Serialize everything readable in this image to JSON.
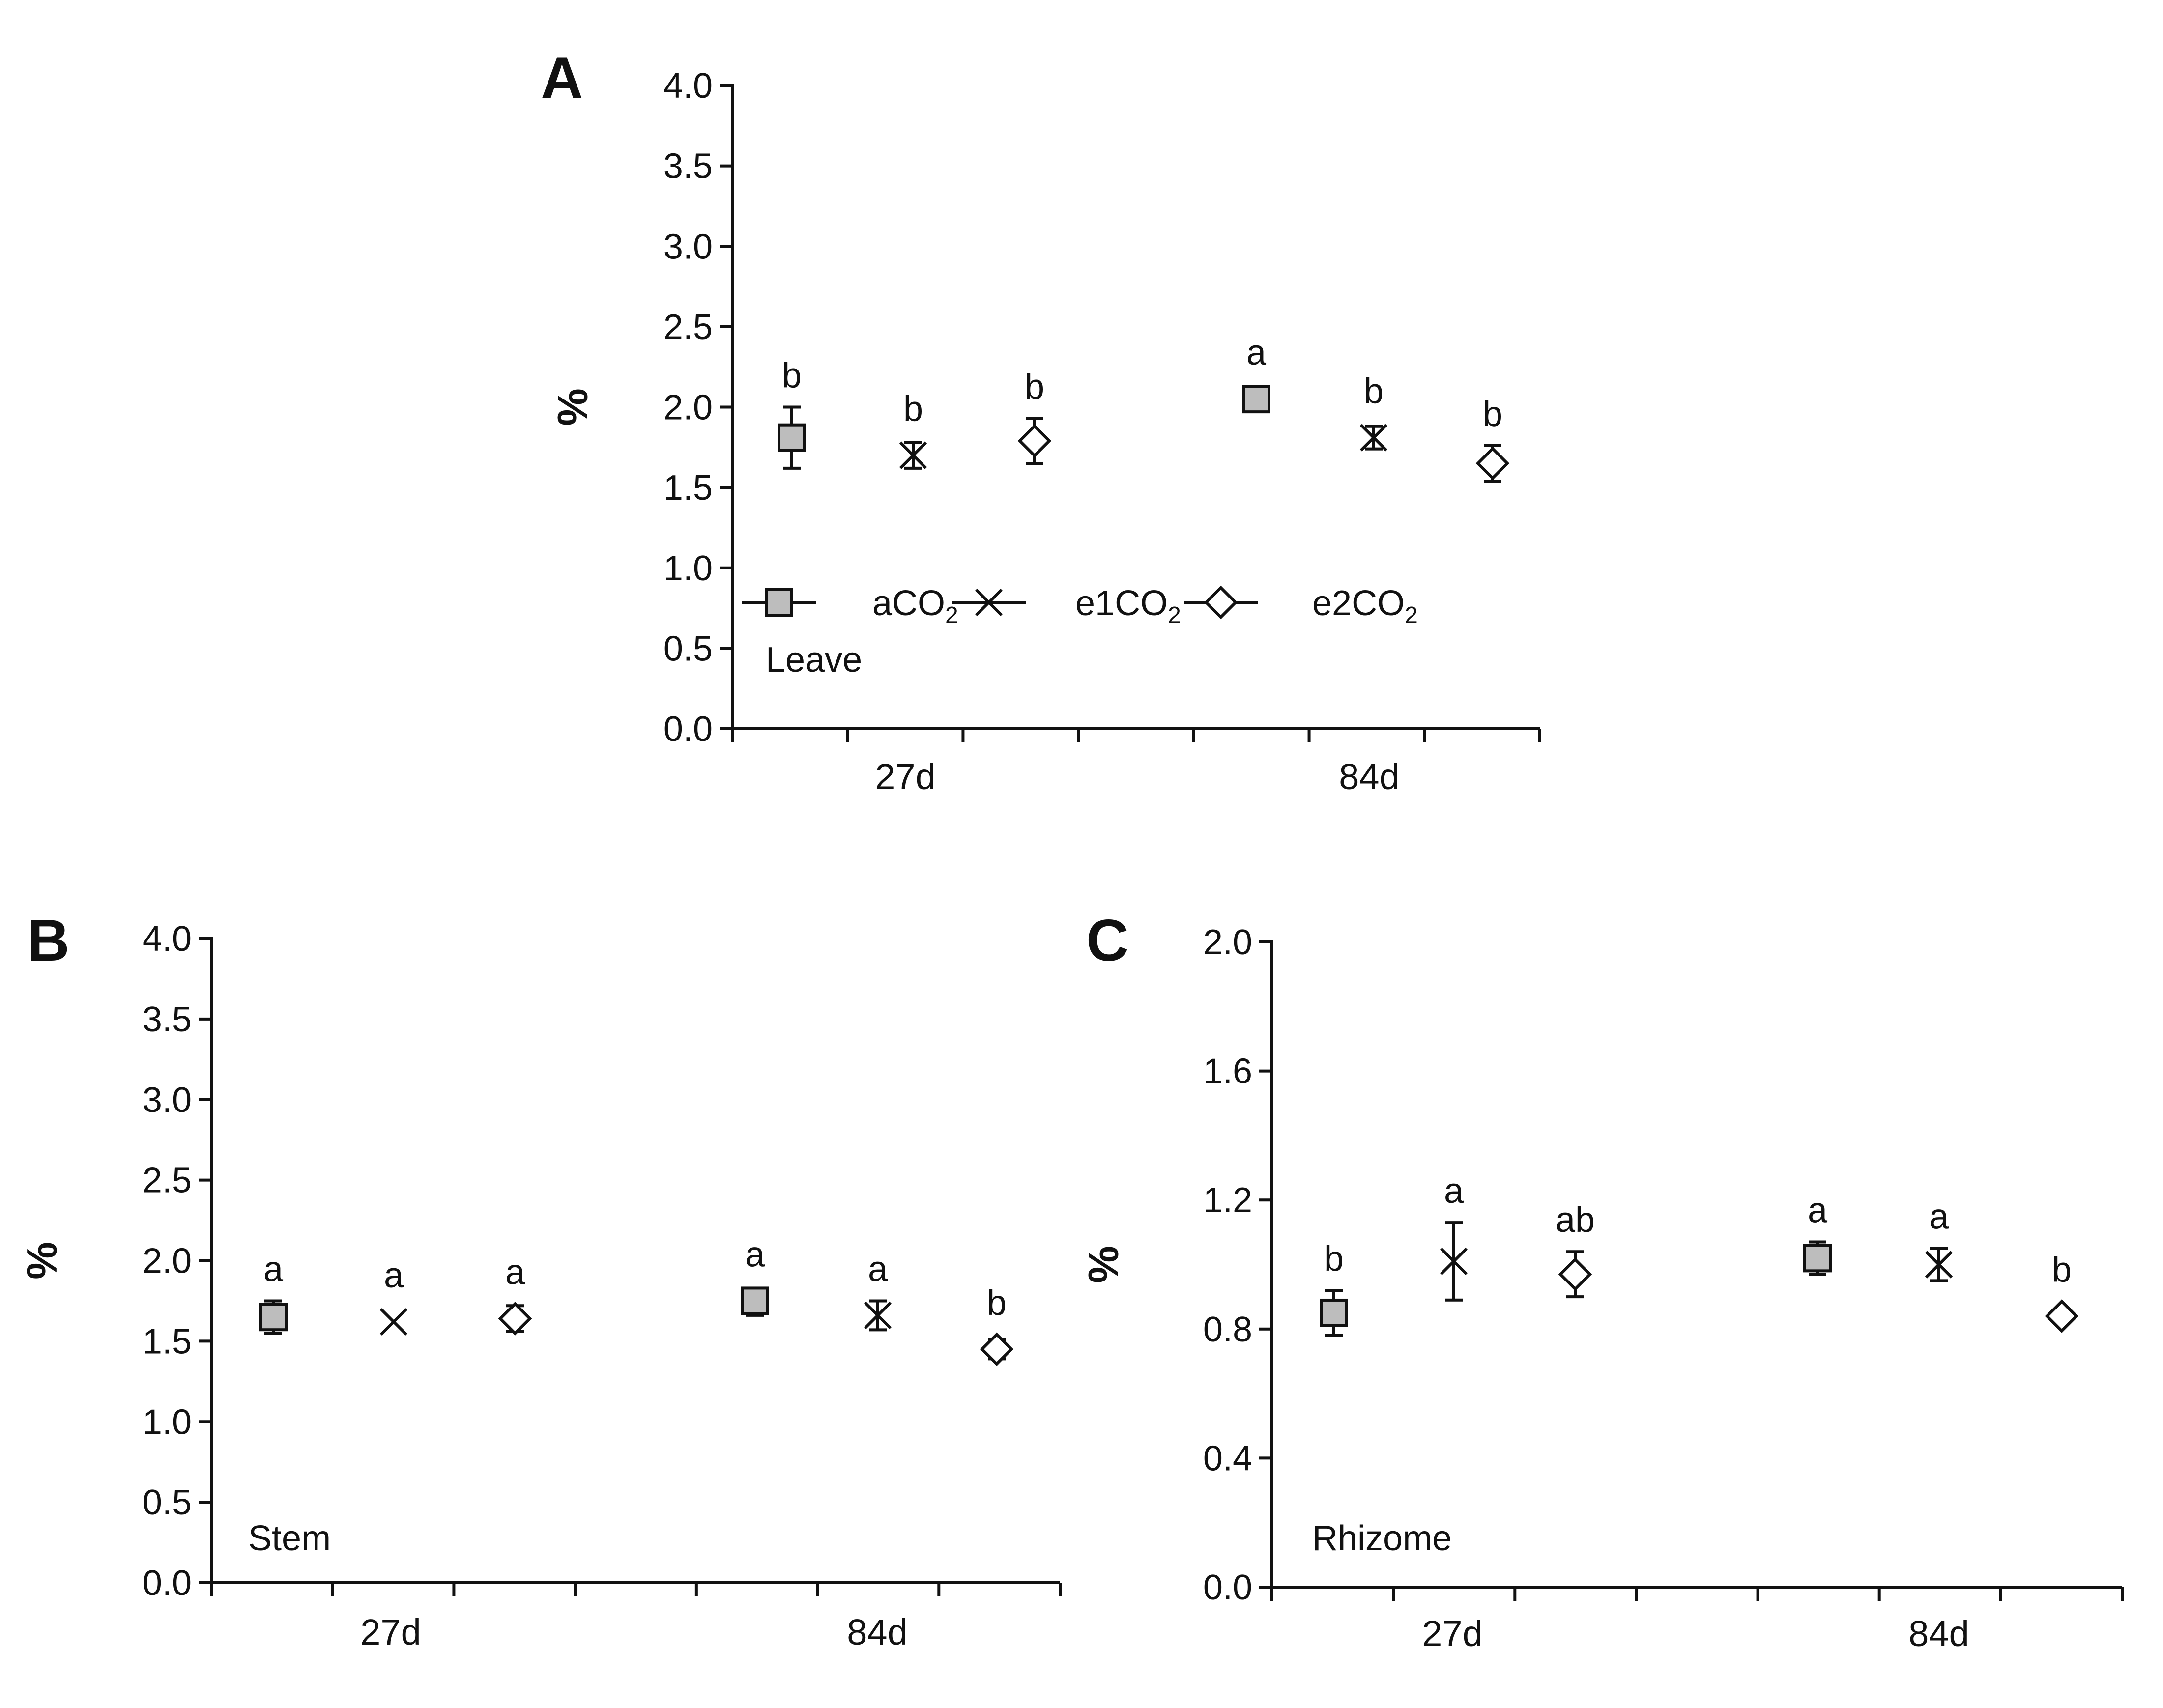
{
  "legend": [
    {
      "key": "a",
      "symbol": "square",
      "label": "aCO",
      "sub": "2"
    },
    {
      "key": "e1",
      "symbol": "cross",
      "label": "e1CO",
      "sub": "2"
    },
    {
      "key": "e2",
      "symbol": "diamond",
      "label": "e2CO",
      "sub": "2"
    }
  ],
  "colors": {
    "square_fill": "#bdbdbd",
    "ink": "#111111"
  },
  "chart_data": [
    {
      "panel": "A",
      "type": "scatter",
      "organ": "Leave",
      "ylabel": "%",
      "ylim": [
        0,
        4.0
      ],
      "yticks": [
        0.0,
        0.5,
        1.0,
        1.5,
        2.0,
        2.5,
        3.0,
        3.5,
        4.0
      ],
      "ytick_labels": [
        "0.0",
        "0.5",
        "1.0",
        "1.5",
        "2.0",
        "2.5",
        "3.0",
        "3.5",
        "4.0"
      ],
      "categories": [
        "27d",
        "84d"
      ],
      "show_legend": true,
      "points": [
        {
          "group": 0,
          "series": "a",
          "value": 1.81,
          "err_lo": 0.19,
          "err_hi": 0.19,
          "letter": "b"
        },
        {
          "group": 0,
          "series": "e1",
          "value": 1.7,
          "err_lo": 0.08,
          "err_hi": 0.08,
          "letter": "b"
        },
        {
          "group": 0,
          "series": "e2",
          "value": 1.79,
          "err_lo": 0.14,
          "err_hi": 0.14,
          "letter": "b"
        },
        {
          "group": 1,
          "series": "a",
          "value": 2.05,
          "err_lo": 0.04,
          "err_hi": 0.04,
          "letter": "a"
        },
        {
          "group": 1,
          "series": "e1",
          "value": 1.81,
          "err_lo": 0.07,
          "err_hi": 0.07,
          "letter": "b"
        },
        {
          "group": 1,
          "series": "e2",
          "value": 1.65,
          "err_lo": 0.11,
          "err_hi": 0.11,
          "letter": "b"
        }
      ]
    },
    {
      "panel": "B",
      "type": "scatter",
      "organ": "Stem",
      "ylabel": "%",
      "ylim": [
        0,
        4.0
      ],
      "yticks": [
        0.0,
        0.5,
        1.0,
        1.5,
        2.0,
        2.5,
        3.0,
        3.5,
        4.0
      ],
      "ytick_labels": [
        "0.0",
        "0.5",
        "1.0",
        "1.5",
        "2.0",
        "2.5",
        "3.0",
        "3.5",
        "4.0"
      ],
      "categories": [
        "27d",
        "84d"
      ],
      "show_legend": false,
      "points": [
        {
          "group": 0,
          "series": "a",
          "value": 1.65,
          "err_lo": 0.1,
          "err_hi": 0.1,
          "letter": "a"
        },
        {
          "group": 0,
          "series": "e1",
          "value": 1.62,
          "err_lo": 0.0,
          "err_hi": 0.0,
          "letter": "a"
        },
        {
          "group": 0,
          "series": "e2",
          "value": 1.64,
          "err_lo": 0.08,
          "err_hi": 0.08,
          "letter": "a"
        },
        {
          "group": 1,
          "series": "a",
          "value": 1.75,
          "err_lo": 0.09,
          "err_hi": 0.01,
          "letter": "a"
        },
        {
          "group": 1,
          "series": "e1",
          "value": 1.66,
          "err_lo": 0.09,
          "err_hi": 0.09,
          "letter": "a"
        },
        {
          "group": 1,
          "series": "e2",
          "value": 1.45,
          "err_lo": 0.06,
          "err_hi": 0.06,
          "letter": "b"
        }
      ]
    },
    {
      "panel": "C",
      "type": "scatter",
      "organ": "Rhizome",
      "ylabel": "%",
      "ylim": [
        0,
        2.0
      ],
      "yticks": [
        0.0,
        0.4,
        0.8,
        1.2,
        1.6,
        2.0
      ],
      "ytick_labels": [
        "0.0",
        "0.4",
        "0.8",
        "1.2",
        "1.6",
        "2.0"
      ],
      "categories": [
        "27d",
        "84d"
      ],
      "show_legend": false,
      "points": [
        {
          "group": 0,
          "series": "a",
          "value": 0.85,
          "err_lo": 0.07,
          "err_hi": 0.07,
          "letter": "b"
        },
        {
          "group": 0,
          "series": "e1",
          "value": 1.01,
          "err_lo": 0.12,
          "err_hi": 0.12,
          "letter": "a"
        },
        {
          "group": 0,
          "series": "e2",
          "value": 0.97,
          "err_lo": 0.07,
          "err_hi": 0.07,
          "letter": "ab"
        },
        {
          "group": 1,
          "series": "a",
          "value": 1.02,
          "err_lo": 0.05,
          "err_hi": 0.05,
          "letter": "a"
        },
        {
          "group": 1,
          "series": "e1",
          "value": 1.0,
          "err_lo": 0.05,
          "err_hi": 0.05,
          "letter": "a"
        },
        {
          "group": 1,
          "series": "e2",
          "value": 0.84,
          "err_lo": 0.02,
          "err_hi": 0.02,
          "letter": "b"
        }
      ]
    }
  ]
}
